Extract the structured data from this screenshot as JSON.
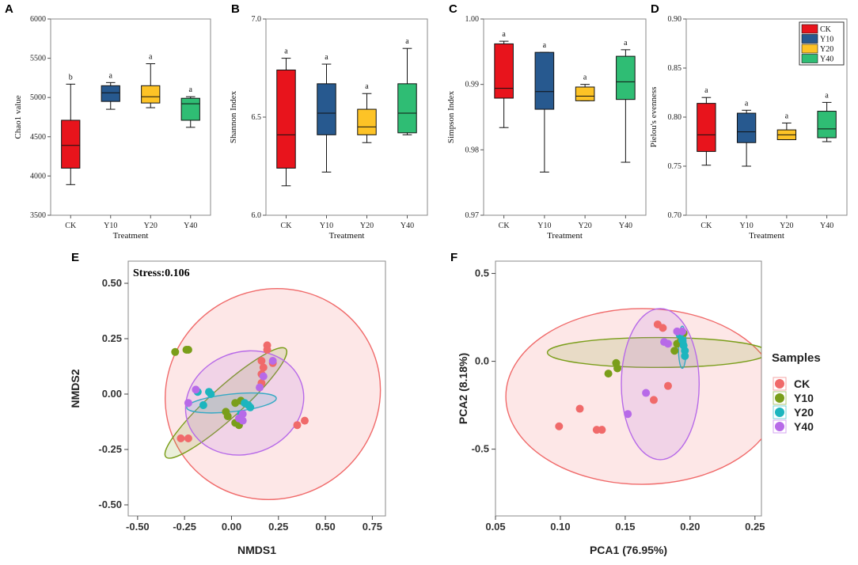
{
  "colors": {
    "CK": "#e8141c",
    "Y10": "#27598f",
    "Y20": "#fdc326",
    "Y40": "#2fbd74"
  },
  "scatter_colors": {
    "CK": "#f06a6a",
    "Y10": "#7a9e1a",
    "Y20": "#1cb5be",
    "Y40": "#b76ae8"
  },
  "chart_data": [
    {
      "type": "box",
      "panel_label": "A",
      "xlabel": "Treatment",
      "ylabel": "Chao1 value",
      "ylim": [
        3500,
        6000
      ],
      "yticks": [
        "3500",
        "4000",
        "4500",
        "5000",
        "5500",
        "6000"
      ],
      "categories": [
        "CK",
        "Y10",
        "Y20",
        "Y40"
      ],
      "boxes": [
        {
          "group": "CK",
          "min": 3890,
          "q1": 4100,
          "median": 4390,
          "q3": 4710,
          "max": 5170,
          "letter": "b"
        },
        {
          "group": "Y10",
          "min": 4850,
          "q1": 4950,
          "median": 5060,
          "q3": 5150,
          "max": 5190,
          "letter": "a"
        },
        {
          "group": "Y20",
          "min": 4870,
          "q1": 4930,
          "median": 5010,
          "q3": 5150,
          "max": 5430,
          "letter": "a"
        },
        {
          "group": "Y40",
          "min": 4620,
          "q1": 4710,
          "median": 4920,
          "q3": 4990,
          "max": 5010,
          "letter": "a"
        }
      ]
    },
    {
      "type": "box",
      "panel_label": "B",
      "xlabel": "Treatment",
      "ylabel": "Shannon Index",
      "ylim": [
        6.0,
        7.0
      ],
      "yticks": [
        "6.0",
        "6.5",
        "7.0"
      ],
      "categories": [
        "CK",
        "Y10",
        "Y20",
        "Y40"
      ],
      "boxes": [
        {
          "group": "CK",
          "min": 6.15,
          "q1": 6.24,
          "median": 6.41,
          "q3": 6.74,
          "max": 6.8,
          "letter": "a"
        },
        {
          "group": "Y10",
          "min": 6.22,
          "q1": 6.41,
          "median": 6.52,
          "q3": 6.67,
          "max": 6.77,
          "letter": "a"
        },
        {
          "group": "Y20",
          "min": 6.37,
          "q1": 6.41,
          "median": 6.45,
          "q3": 6.54,
          "max": 6.62,
          "letter": "a"
        },
        {
          "group": "Y40",
          "min": 6.41,
          "q1": 6.42,
          "median": 6.52,
          "q3": 6.67,
          "max": 6.85,
          "letter": "a"
        }
      ]
    },
    {
      "type": "box",
      "panel_label": "C",
      "xlabel": "Treatment",
      "ylabel": "Simpson  Index",
      "ylim": [
        0.97,
        1.0
      ],
      "yticks": [
        "0.97",
        "0.98",
        "0.99",
        "1.00"
      ],
      "categories": [
        "CK",
        "Y10",
        "Y20",
        "Y40"
      ],
      "boxes": [
        {
          "group": "CK",
          "min": 0.9834,
          "q1": 0.9879,
          "median": 0.9894,
          "q3": 0.9962,
          "max": 0.9966,
          "letter": "a"
        },
        {
          "group": "Y10",
          "min": 0.9766,
          "q1": 0.9862,
          "median": 0.9889,
          "q3": 0.9949,
          "max": 0.9949,
          "letter": "a"
        },
        {
          "group": "Y20",
          "min": 0.9875,
          "q1": 0.9875,
          "median": 0.9882,
          "q3": 0.9896,
          "max": 0.99,
          "letter": "a"
        },
        {
          "group": "Y40",
          "min": 0.9781,
          "q1": 0.9877,
          "median": 0.9904,
          "q3": 0.9943,
          "max": 0.9953,
          "letter": "a"
        }
      ]
    },
    {
      "type": "box",
      "panel_label": "D",
      "xlabel": "Treatment",
      "ylabel": "Pielou's evenness",
      "ylim": [
        0.7,
        0.9
      ],
      "yticks": [
        "0.70",
        "0.75",
        "0.80",
        "0.85",
        "0.90"
      ],
      "categories": [
        "CK",
        "Y10",
        "Y20",
        "Y40"
      ],
      "legend": [
        "CK",
        "Y10",
        "Y20",
        "Y40"
      ],
      "boxes": [
        {
          "group": "CK",
          "min": 0.751,
          "q1": 0.765,
          "median": 0.782,
          "q3": 0.814,
          "max": 0.82,
          "letter": "a"
        },
        {
          "group": "Y10",
          "min": 0.75,
          "q1": 0.774,
          "median": 0.785,
          "q3": 0.804,
          "max": 0.807,
          "letter": "a"
        },
        {
          "group": "Y20",
          "min": 0.777,
          "q1": 0.777,
          "median": 0.782,
          "q3": 0.787,
          "max": 0.794,
          "letter": "a"
        },
        {
          "group": "Y40",
          "min": 0.775,
          "q1": 0.779,
          "median": 0.788,
          "q3": 0.806,
          "max": 0.815,
          "letter": "a"
        }
      ]
    },
    {
      "type": "scatter",
      "panel_label": "E",
      "xlabel": "NMDS1",
      "ylabel": "NMDS2",
      "annotation": "Stress:0.106",
      "xlim": [
        -0.55,
        0.82
      ],
      "ylim": [
        -0.55,
        0.6
      ],
      "xticks": [
        "-0.50",
        "-0.25",
        "0.00",
        "0.25",
        "0.50",
        "0.75"
      ],
      "yticks": [
        "-0.50",
        "-0.25",
        "0.00",
        "0.25",
        "0.50"
      ],
      "series": [
        {
          "name": "CK",
          "points": [
            [
              0.19,
              0.2
            ],
            [
              0.19,
              0.22
            ],
            [
              0.16,
              0.15
            ],
            [
              0.17,
              0.12
            ],
            [
              0.22,
              0.14
            ],
            [
              0.16,
              0.09
            ],
            [
              0.16,
              0.05
            ],
            [
              -0.27,
              -0.2
            ],
            [
              -0.23,
              -0.2
            ],
            [
              0.35,
              -0.14
            ],
            [
              0.39,
              -0.12
            ]
          ]
        },
        {
          "name": "Y10",
          "points": [
            [
              -0.3,
              0.19
            ],
            [
              -0.24,
              0.2
            ],
            [
              -0.23,
              0.2
            ],
            [
              0.02,
              -0.04
            ],
            [
              0.05,
              -0.03
            ],
            [
              -0.03,
              -0.08
            ],
            [
              -0.02,
              -0.1
            ],
            [
              0.02,
              -0.13
            ],
            [
              0.04,
              -0.14
            ]
          ]
        },
        {
          "name": "Y20",
          "points": [
            [
              -0.18,
              0.01
            ],
            [
              -0.12,
              0.01
            ],
            [
              -0.11,
              0.0
            ],
            [
              -0.15,
              -0.05
            ],
            [
              0.07,
              -0.04
            ],
            [
              0.09,
              -0.05
            ],
            [
              0.1,
              -0.06
            ],
            [
              0.05,
              -0.09
            ]
          ]
        },
        {
          "name": "Y40",
          "points": [
            [
              -0.19,
              0.02
            ],
            [
              -0.23,
              -0.04
            ],
            [
              0.06,
              -0.09
            ],
            [
              0.04,
              -0.11
            ],
            [
              0.06,
              -0.12
            ],
            [
              0.17,
              0.08
            ],
            [
              0.15,
              0.03
            ],
            [
              0.22,
              0.15
            ]
          ]
        }
      ],
      "ellipses": [
        {
          "name": "CK",
          "cx": 0.22,
          "cy": 0.0,
          "rx": 0.58,
          "ry": 0.47,
          "angle_deg": -32
        },
        {
          "name": "Y10",
          "cx": -0.03,
          "cy": -0.04,
          "rx": 0.43,
          "ry": 0.07,
          "angle_deg": -42
        },
        {
          "name": "Y20",
          "cx": 0.0,
          "cy": -0.04,
          "rx": 0.24,
          "ry": 0.04,
          "angle_deg": -6
        },
        {
          "name": "Y40",
          "cx": 0.07,
          "cy": -0.04,
          "rx": 0.32,
          "ry": 0.23,
          "angle_deg": -20
        }
      ]
    },
    {
      "type": "scatter",
      "panel_label": "F",
      "xlabel": "PCA1 (76.95%)",
      "ylabel": "PCA2 (8.18%)",
      "legend_title": "Samples",
      "legend": [
        "CK",
        "Y10",
        "Y20",
        "Y40"
      ],
      "xlim": [
        0.05,
        0.255
      ],
      "ylim": [
        -0.88,
        0.57
      ],
      "xticks": [
        "0.05",
        "0.10",
        "0.15",
        "0.20",
        "0.25"
      ],
      "yticks": [
        "-0.5",
        "0.0",
        "0.5"
      ],
      "series": [
        {
          "name": "CK",
          "points": [
            [
              0.175,
              0.21
            ],
            [
              0.179,
              0.19
            ],
            [
              0.115,
              -0.27
            ],
            [
              0.099,
              -0.37
            ],
            [
              0.128,
              -0.39
            ],
            [
              0.132,
              -0.39
            ],
            [
              0.172,
              -0.22
            ],
            [
              0.183,
              -0.14
            ]
          ]
        },
        {
          "name": "Y10",
          "points": [
            [
              0.137,
              -0.07
            ],
            [
              0.143,
              -0.01
            ],
            [
              0.144,
              -0.04
            ],
            [
              0.188,
              0.06
            ],
            [
              0.19,
              0.1
            ],
            [
              0.193,
              0.12
            ],
            [
              0.195,
              0.16
            ]
          ]
        },
        {
          "name": "Y20",
          "points": [
            [
              0.192,
              0.15
            ],
            [
              0.194,
              0.12
            ],
            [
              0.195,
              0.09
            ],
            [
              0.196,
              0.06
            ],
            [
              0.196,
              0.03
            ]
          ]
        },
        {
          "name": "Y40",
          "points": [
            [
              0.18,
              0.11
            ],
            [
              0.19,
              0.17
            ],
            [
              0.194,
              0.17
            ],
            [
              0.166,
              -0.18
            ],
            [
              0.152,
              -0.3
            ],
            [
              0.183,
              0.1
            ]
          ]
        }
      ],
      "ellipses": [
        {
          "name": "CK",
          "cx": 0.163,
          "cy": -0.2,
          "rx": 0.105,
          "ry": 0.5,
          "angle_deg": 0
        },
        {
          "name": "Y10",
          "cx": 0.175,
          "cy": 0.05,
          "rx": 0.085,
          "ry": 0.085,
          "angle_deg": 0
        },
        {
          "name": "Y20",
          "cx": 0.194,
          "cy": 0.08,
          "rx": 0.003,
          "ry": 0.12,
          "angle_deg": 0
        },
        {
          "name": "Y40",
          "cx": 0.177,
          "cy": -0.13,
          "rx": 0.03,
          "ry": 0.43,
          "angle_deg": 0
        }
      ]
    }
  ]
}
